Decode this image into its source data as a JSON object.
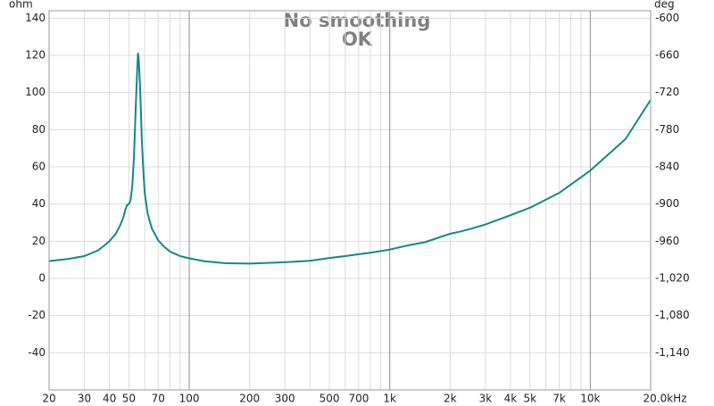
{
  "chart_data": {
    "type": "line",
    "title": "No smoothing",
    "subtitle": "OK",
    "ylabel": "ohm",
    "y2label": "deg",
    "xscale": "log",
    "grid": true,
    "xlim": [
      20,
      20000
    ],
    "ylim": [
      -60,
      144
    ],
    "y2lim": [
      -1200,
      -588
    ],
    "xticks": [
      20,
      30,
      40,
      50,
      70,
      100,
      200,
      300,
      500,
      700,
      {
        "value": 1000,
        "label": "1k"
      },
      {
        "value": 2000,
        "label": "2k"
      },
      {
        "value": 3000,
        "label": "3k"
      },
      {
        "value": 4000,
        "label": "4k"
      },
      {
        "value": 5000,
        "label": "5k"
      },
      {
        "value": 7000,
        "label": "7k"
      },
      {
        "value": 10000,
        "label": "10k"
      },
      {
        "value": 20000,
        "label": "20.0kHz"
      }
    ],
    "xminorticks": [
      60,
      80,
      90,
      400,
      600,
      800,
      900,
      6000,
      8000,
      9000
    ],
    "yticks": [
      -40,
      -20,
      0,
      20,
      40,
      60,
      80,
      100,
      120,
      140
    ],
    "y2ticks": [
      -600,
      -660,
      -720,
      -780,
      -840,
      -900,
      -960,
      {
        "value": -1020,
        "label": "-1,020"
      },
      {
        "value": -1080,
        "label": "-1,080"
      },
      {
        "value": -1140,
        "label": "-1,140"
      }
    ],
    "x": [
      20,
      25,
      30,
      35,
      38,
      40,
      43,
      45,
      47,
      48,
      49,
      50,
      51,
      52,
      53,
      54,
      55,
      55.5,
      56,
      57,
      58,
      59,
      60,
      62,
      65,
      70,
      75,
      80,
      90,
      100,
      120,
      150,
      200,
      300,
      400,
      500,
      600,
      700,
      800,
      1000,
      1200,
      1500,
      2000,
      2200,
      2500,
      3000,
      4000,
      5000,
      7000,
      10000,
      15000,
      20000
    ],
    "series": [
      {
        "color": "#15878a",
        "values": [
          9.3,
          10.5,
          12,
          15,
          18,
          20,
          24,
          28,
          33,
          37,
          39.5,
          40,
          42,
          50,
          65,
          90,
          112,
          121,
          118,
          100,
          75,
          58,
          46,
          35,
          27,
          20.5,
          17,
          14.5,
          12,
          10.8,
          9.2,
          8.2,
          8.0,
          8.7,
          9.5,
          11,
          12,
          13,
          13.8,
          15.5,
          17.5,
          19.5,
          24,
          25,
          26.5,
          29,
          34,
          38,
          46,
          58,
          75,
          96
        ]
      }
    ]
  }
}
